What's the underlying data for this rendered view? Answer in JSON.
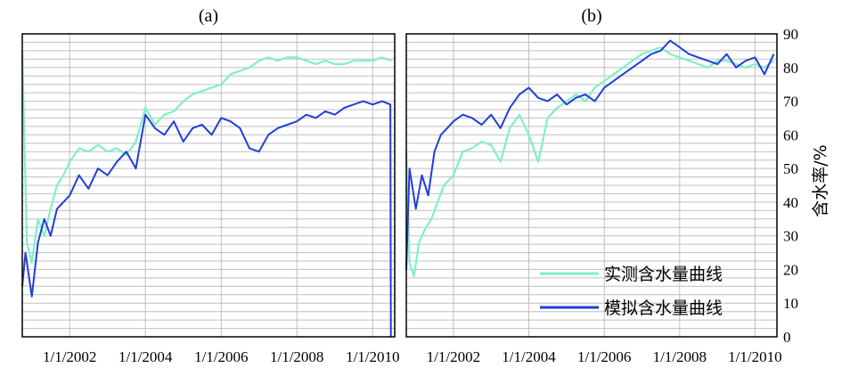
{
  "chart_data": {
    "type": "line",
    "ylabel": "含水率/%",
    "ylim": [
      0,
      90
    ],
    "yticks": [
      "0",
      "10",
      "20",
      "30",
      "40",
      "50",
      "60",
      "70",
      "80",
      "90"
    ],
    "xlim": [
      "2000-10-01",
      "2010-08-01"
    ],
    "xtick_labels": [
      "1/1/2002",
      "1/1/2004",
      "1/1/2006",
      "1/1/2008",
      "1/1/2010"
    ],
    "xticks": [
      "2002-01-01",
      "2004-01-01",
      "2006-01-01",
      "2008-01-01",
      "2010-01-01"
    ],
    "grid": true,
    "legend": {
      "placement": "bottom-right of panel (b)",
      "entries": [
        "实测含水量曲线",
        "模拟含水量曲线"
      ]
    },
    "colors": {
      "measured": "#7ff0c8",
      "simulated": "#1f3fd8",
      "grid": "#bfbfbf",
      "frame": "#000000"
    },
    "panels": [
      {
        "label": "(a)",
        "series": [
          {
            "name": "实测含水量曲线",
            "x": [
              "2000-10-01",
              "2000-10-20",
              "2000-11-15",
              "2001-01-01",
              "2001-03-01",
              "2001-05-01",
              "2001-07-01",
              "2001-09-01",
              "2001-11-01",
              "2002-01-01",
              "2002-04-01",
              "2002-07-01",
              "2002-10-01",
              "2003-01-01",
              "2003-04-01",
              "2003-07-01",
              "2003-10-01",
              "2004-01-01",
              "2004-04-01",
              "2004-07-01",
              "2004-10-01",
              "2005-01-01",
              "2005-04-01",
              "2005-07-01",
              "2005-10-01",
              "2006-01-01",
              "2006-04-01",
              "2006-07-01",
              "2006-10-01",
              "2007-01-01",
              "2007-04-01",
              "2007-07-01",
              "2007-10-01",
              "2008-01-01",
              "2008-04-01",
              "2008-07-01",
              "2008-10-01",
              "2009-01-01",
              "2009-04-01",
              "2009-07-01",
              "2009-10-01",
              "2010-01-01",
              "2010-04-01",
              "2010-07-01"
            ],
            "values": [
              85,
              60,
              28,
              22,
              35,
              30,
              38,
              45,
              48,
              52,
              56,
              55,
              57,
              55,
              56,
              54,
              58,
              68,
              63,
              66,
              67,
              70,
              72,
              73,
              74,
              75,
              78,
              79,
              80,
              82,
              83,
              82,
              83,
              83,
              82,
              81,
              82,
              81,
              81,
              82,
              82,
              82,
              83,
              82
            ]
          },
          {
            "name": "模拟含水量曲线",
            "x": [
              "2000-10-01",
              "2000-11-01",
              "2001-01-01",
              "2001-03-01",
              "2001-05-01",
              "2001-07-01",
              "2001-09-01",
              "2001-11-01",
              "2002-01-01",
              "2002-04-01",
              "2002-07-01",
              "2002-10-01",
              "2003-01-01",
              "2003-04-01",
              "2003-07-01",
              "2003-10-01",
              "2004-01-01",
              "2004-04-01",
              "2004-07-01",
              "2004-10-01",
              "2005-01-01",
              "2005-04-01",
              "2005-07-01",
              "2005-10-01",
              "2006-01-01",
              "2006-04-01",
              "2006-07-01",
              "2006-10-01",
              "2007-01-01",
              "2007-04-01",
              "2007-07-01",
              "2007-10-01",
              "2008-01-01",
              "2008-04-01",
              "2008-07-01",
              "2008-10-01",
              "2009-01-01",
              "2009-04-01",
              "2009-07-01",
              "2009-10-01",
              "2010-01-01",
              "2010-04-01",
              "2010-06-20",
              "2010-06-25"
            ],
            "values": [
              15,
              25,
              12,
              28,
              35,
              30,
              38,
              40,
              42,
              48,
              44,
              50,
              48,
              52,
              55,
              50,
              66,
              62,
              60,
              64,
              58,
              62,
              63,
              60,
              65,
              64,
              62,
              56,
              55,
              60,
              62,
              63,
              64,
              66,
              65,
              67,
              66,
              68,
              69,
              70,
              69,
              70,
              69,
              0
            ]
          }
        ]
      },
      {
        "label": "(b)",
        "series": [
          {
            "name": "实测含水量曲线",
            "x": [
              "2000-10-01",
              "2000-11-01",
              "2000-12-15",
              "2001-02-01",
              "2001-04-01",
              "2001-06-01",
              "2001-08-01",
              "2001-10-01",
              "2002-01-01",
              "2002-04-01",
              "2002-07-01",
              "2002-10-01",
              "2003-01-01",
              "2003-04-01",
              "2003-07-01",
              "2003-10-01",
              "2004-01-01",
              "2004-04-01",
              "2004-07-01",
              "2004-10-01",
              "2005-01-01",
              "2005-04-01",
              "2005-07-01",
              "2005-10-01",
              "2006-01-01",
              "2006-04-01",
              "2006-07-01",
              "2006-10-01",
              "2007-01-01",
              "2007-04-01",
              "2007-07-01",
              "2007-10-01",
              "2008-01-01",
              "2008-04-01",
              "2008-07-01",
              "2008-10-01",
              "2009-01-01",
              "2009-04-01",
              "2009-07-01",
              "2009-10-01",
              "2010-01-01",
              "2010-04-01",
              "2010-07-01"
            ],
            "values": [
              55,
              22,
              18,
              28,
              32,
              35,
              40,
              45,
              48,
              55,
              56,
              58,
              57,
              52,
              62,
              66,
              60,
              52,
              65,
              68,
              70,
              72,
              70,
              74,
              76,
              78,
              80,
              82,
              84,
              85,
              86,
              84,
              83,
              82,
              81,
              80,
              82,
              82,
              81,
              80,
              81,
              80,
              82
            ]
          },
          {
            "name": "模拟含水量曲线",
            "x": [
              "2000-10-01",
              "2000-11-01",
              "2001-01-01",
              "2001-03-01",
              "2001-05-01",
              "2001-07-01",
              "2001-09-01",
              "2001-11-01",
              "2002-01-01",
              "2002-04-01",
              "2002-07-01",
              "2002-10-01",
              "2003-01-01",
              "2003-04-01",
              "2003-07-01",
              "2003-10-01",
              "2004-01-01",
              "2004-04-01",
              "2004-07-01",
              "2004-10-01",
              "2005-01-01",
              "2005-04-01",
              "2005-07-01",
              "2005-10-01",
              "2006-01-01",
              "2006-04-01",
              "2006-07-01",
              "2006-10-01",
              "2007-01-01",
              "2007-04-01",
              "2007-07-01",
              "2007-10-01",
              "2008-01-01",
              "2008-04-01",
              "2008-07-01",
              "2008-10-01",
              "2009-01-01",
              "2009-04-01",
              "2009-07-01",
              "2009-10-01",
              "2010-01-01",
              "2010-04-01",
              "2010-07-01"
            ],
            "values": [
              20,
              50,
              38,
              48,
              42,
              55,
              60,
              62,
              64,
              66,
              65,
              63,
              66,
              62,
              68,
              72,
              74,
              71,
              70,
              72,
              69,
              71,
              72,
              70,
              74,
              76,
              78,
              80,
              82,
              84,
              85,
              88,
              86,
              84,
              83,
              82,
              81,
              84,
              80,
              82,
              83,
              78,
              84
            ]
          }
        ]
      }
    ]
  }
}
